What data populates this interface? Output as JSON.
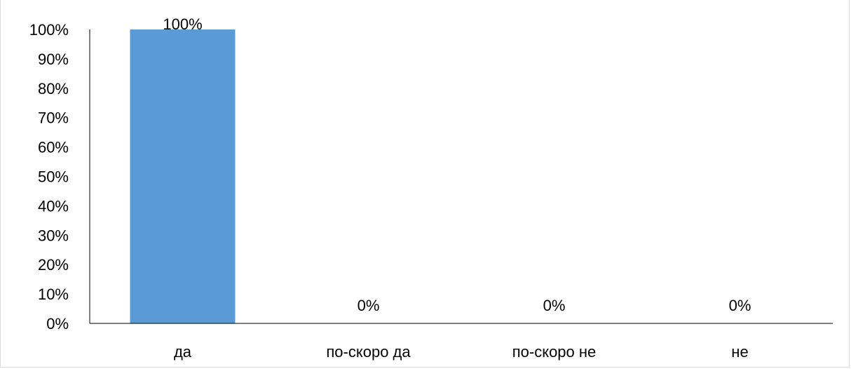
{
  "chart_data": {
    "type": "bar",
    "categories": [
      "да",
      "по-скоро да",
      "по-скоро не",
      "не"
    ],
    "values": [
      100,
      0,
      0,
      0
    ],
    "value_unit": "%",
    "ylim": [
      0,
      100
    ],
    "y_ticks": [
      0,
      10,
      20,
      30,
      40,
      50,
      60,
      70,
      80,
      90,
      100
    ],
    "y_tick_labels": [
      "0%",
      "10%",
      "20%",
      "30%",
      "40%",
      "50%",
      "60%",
      "70%",
      "80%",
      "90%",
      "100%"
    ],
    "data_labels": [
      "100%",
      "0%",
      "0%",
      "0%"
    ],
    "title": "",
    "xlabel": "",
    "ylabel": "",
    "grid": false,
    "legend": "none",
    "bar_color": "#5b9bd5"
  }
}
